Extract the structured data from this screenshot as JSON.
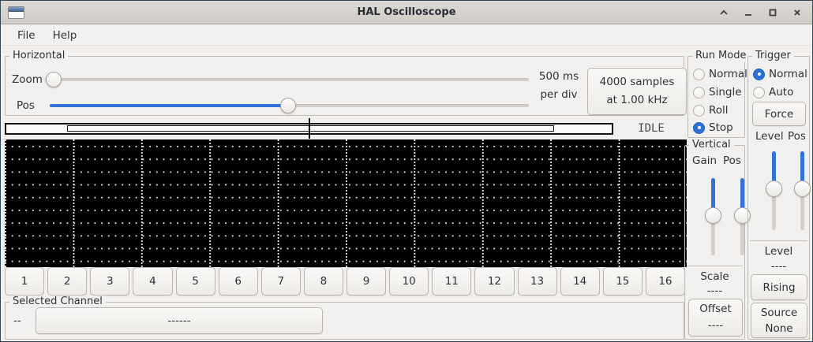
{
  "window": {
    "title": "HAL Oscilloscope"
  },
  "menu": {
    "file": "File",
    "help": "Help"
  },
  "horizontal": {
    "label": "Horizontal",
    "zoom": "Zoom",
    "pos": "Pos",
    "timebase": {
      "line1": "500 ms",
      "line2": "per div"
    },
    "samples": {
      "line1": "4000 samples",
      "line2": "at 1.00 kHz"
    },
    "status": "IDLE"
  },
  "channels": [
    "1",
    "2",
    "3",
    "4",
    "5",
    "6",
    "7",
    "8",
    "9",
    "10",
    "11",
    "12",
    "13",
    "14",
    "15",
    "16"
  ],
  "selected_channel": {
    "label": "Selected Channel",
    "value": "--",
    "name": "------"
  },
  "run_mode": {
    "label": "Run Mode",
    "options": [
      {
        "label": "Normal",
        "selected": false
      },
      {
        "label": "Single",
        "selected": false
      },
      {
        "label": "Roll",
        "selected": false
      },
      {
        "label": "Stop",
        "selected": true
      }
    ]
  },
  "vertical": {
    "label": "Vertical",
    "gain": "Gain",
    "pos": "Pos",
    "scale_label": "Scale",
    "scale_value": "----",
    "offset_label": "Offset",
    "offset_value": "----"
  },
  "trigger": {
    "label": "Trigger",
    "options": [
      {
        "label": "Normal",
        "selected": true
      },
      {
        "label": "Auto",
        "selected": false
      }
    ],
    "force": "Force",
    "level_col": "Level",
    "pos_col": "Pos",
    "level_label": "Level",
    "level_value": "----",
    "edge": "Rising",
    "source_label": "Source",
    "source_value": "None"
  },
  "colors": {
    "accent_blue": "#3273d8",
    "display_bg": "#000000"
  }
}
